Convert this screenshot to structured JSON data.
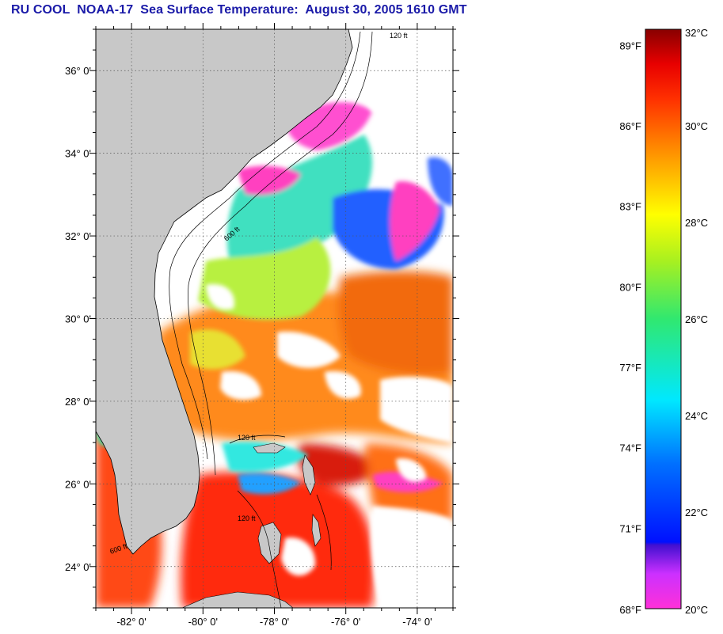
{
  "title": "RU COOL  NOAA-17  Sea Surface Temperature:  August 30, 2005 1610 GMT",
  "colors": {
    "land": "#c8c8c8",
    "cloud": "#ffffff",
    "frame": "#000000"
  },
  "map": {
    "lon_range": [
      -83,
      -73
    ],
    "lat_range": [
      23,
      37
    ],
    "lat_labels": [
      "36° 0'",
      "34° 0'",
      "32° 0'",
      "30° 0'",
      "28° 0'",
      "26° 0'",
      "24° 0'"
    ],
    "lat_values": [
      36,
      34,
      32,
      30,
      28,
      26,
      24
    ],
    "lon_labels": [
      "-82° 0'",
      "-80° 0'",
      "-78° 0'",
      "-76° 0'",
      "-74° 0'"
    ],
    "lon_values": [
      -82,
      -80,
      -78,
      -76,
      -74
    ],
    "contour_labels": [
      "120 ft",
      "600 ft",
      "120 ft",
      "120 ft",
      "600 ft"
    ]
  },
  "colorbar": {
    "celsius_range": [
      20,
      32
    ],
    "celsius_labels": [
      "32°C",
      "30°C",
      "28°C",
      "26°C",
      "24°C",
      "22°C",
      "20°C"
    ],
    "celsius_values": [
      32,
      30,
      28,
      26,
      24,
      22,
      20
    ],
    "fahrenheit_labels": [
      "89°F",
      "86°F",
      "83°F",
      "80°F",
      "77°F",
      "74°F",
      "71°F",
      "68°F"
    ],
    "fahrenheit_values": [
      89,
      86,
      83,
      80,
      77,
      74,
      71,
      68
    ]
  }
}
